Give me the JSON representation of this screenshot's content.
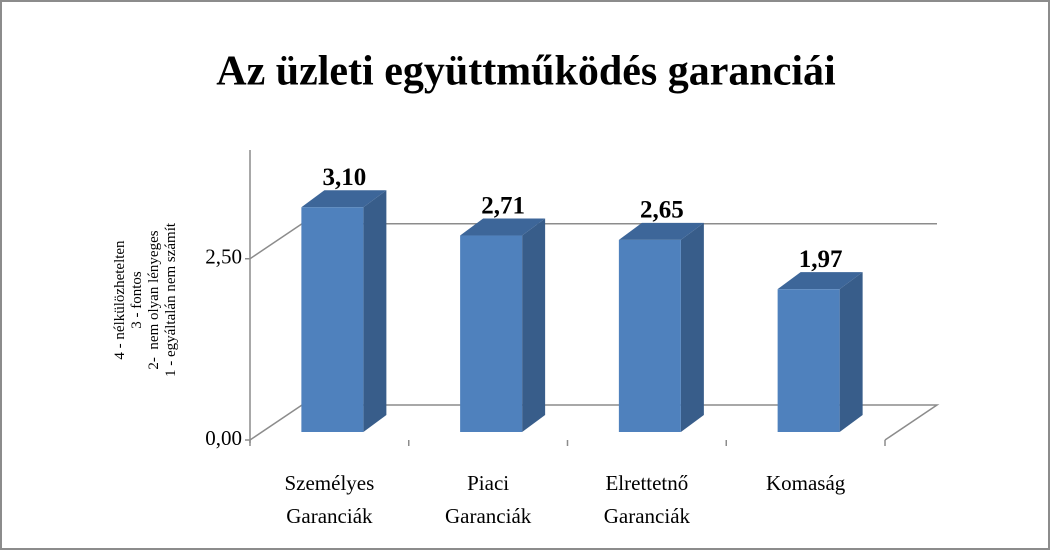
{
  "chart_data": {
    "type": "bar3d",
    "title": "Az üzleti együttműködés garanciái",
    "y_label": [
      "4 - nélkülözhetelten",
      "3 - fontos",
      "2-  nem olyan lényeges",
      "1 - egyáltalán nem számít"
    ],
    "categories": [
      "Személyes Garanciák",
      "Piaci Garanciák",
      "Elrettetnő Garanciák",
      "Komaság"
    ],
    "values": [
      3.1,
      2.71,
      2.65,
      1.97
    ],
    "value_labels": [
      "3,10",
      "2,71",
      "2,65",
      "1,97"
    ],
    "color": "#4f81bd",
    "ylim": [
      0,
      4
    ],
    "yticks": [
      {
        "value": 0,
        "label": "0,00"
      },
      {
        "value": 2.5,
        "label": "2,50"
      }
    ],
    "grid": true
  }
}
